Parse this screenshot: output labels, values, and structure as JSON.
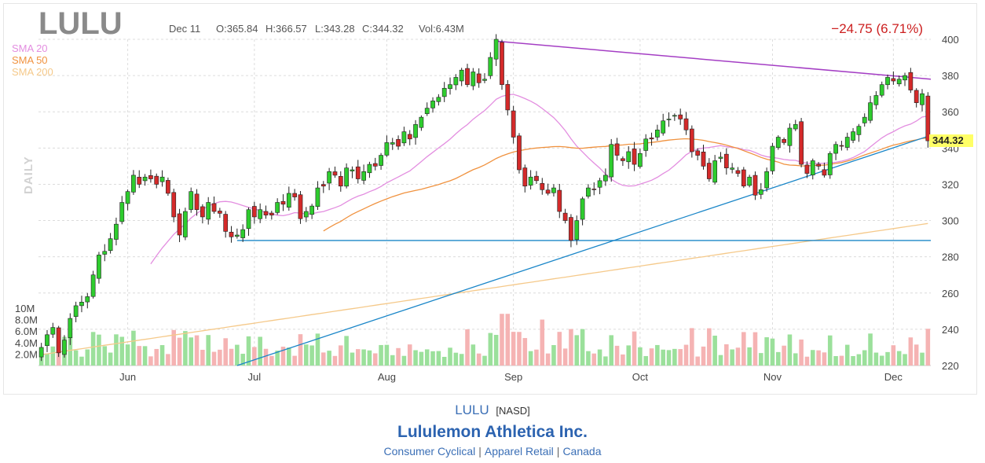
{
  "header": {
    "symbol": "LULU",
    "date": "Dec 11",
    "open": "O:365.84",
    "high": "H:366.57",
    "low": "L:343.28",
    "close": "C:344.32",
    "volume": "Vol:6.43M",
    "change": "−24.75 (6.71%)",
    "last_price": "344.32",
    "period": "DAILY"
  },
  "legend": [
    {
      "name": "SMA 20",
      "color": "#e38ee0"
    },
    {
      "name": "SMA 50",
      "color": "#f0923f"
    },
    {
      "name": "SMA 200",
      "color": "#f5c98a"
    }
  ],
  "colors": {
    "up": "#2ecc2e",
    "down": "#d42a2a",
    "vol_up": "#9be09b",
    "vol_down": "#f5b3b3",
    "trend_purple": "#a43ec4",
    "trend_blue": "#1a86c8",
    "last_price_bg": "#ffff66"
  },
  "chart_data": {
    "type": "candlestick",
    "title": "LULU",
    "ylim": [
      220,
      400
    ],
    "y_ticks": [
      "220",
      "240",
      "260",
      "280",
      "300",
      "320",
      "340",
      "360",
      "380",
      "400"
    ],
    "x_ticks": [
      "Jun",
      "Jul",
      "Aug",
      "Sep",
      "Oct",
      "Nov",
      "Dec"
    ],
    "volume_ticks": [
      "2.0M",
      "4.0M",
      "6.0M",
      "8.0M",
      "10M"
    ],
    "volume_max": 13,
    "close": [
      230,
      237,
      241,
      227,
      234,
      246,
      253,
      255,
      258,
      270,
      281,
      283,
      290,
      298,
      310,
      316,
      325,
      320,
      324,
      323,
      320,
      324,
      315,
      302,
      292,
      305,
      316,
      306,
      302,
      310,
      305,
      304,
      294,
      291,
      292,
      295,
      306,
      302,
      306,
      303,
      303,
      310,
      309,
      315,
      313,
      301,
      305,
      308,
      318,
      319,
      327,
      325,
      319,
      329,
      328,
      323,
      327,
      331,
      330,
      336,
      343,
      343,
      341,
      349,
      345,
      353,
      357,
      362,
      366,
      368,
      373,
      375,
      379,
      383,
      375,
      382,
      376,
      378,
      390,
      400,
      375,
      361,
      346,
      328,
      319,
      324,
      322,
      317,
      315,
      318,
      305,
      300,
      289,
      300,
      312,
      318,
      317,
      322,
      325,
      342,
      336,
      333,
      338,
      331,
      337,
      345,
      345,
      350,
      355,
      356,
      358,
      356,
      350,
      338,
      336,
      330,
      323,
      333,
      335,
      329,
      329,
      326,
      319,
      324,
      314,
      317,
      327,
      341,
      346,
      343,
      351,
      353,
      331,
      326,
      333,
      330,
      325,
      337,
      342,
      341,
      346,
      349,
      352,
      357,
      365,
      369,
      375,
      379,
      377,
      378,
      380,
      372,
      365,
      370,
      344
    ]
  },
  "footer": {
    "ticker": "LULU",
    "exchange": "[NASD]",
    "company": "Lululemon Athletica Inc.",
    "sector": "Consumer Cyclical",
    "industry": "Apparel Retail",
    "country": "Canada"
  }
}
